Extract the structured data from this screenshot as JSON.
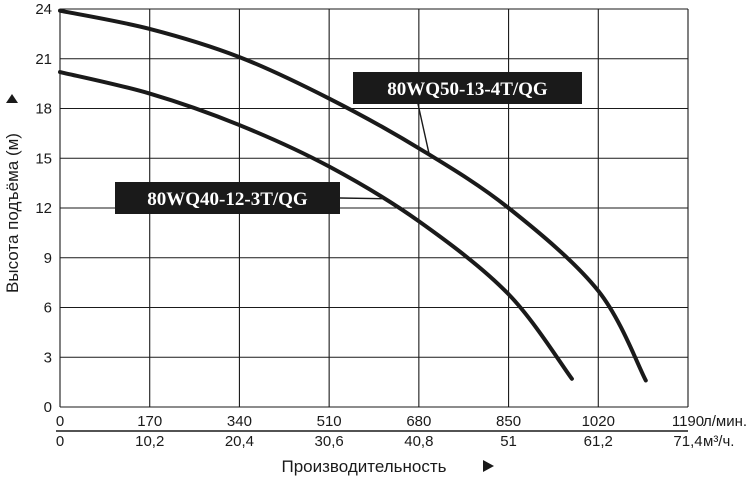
{
  "chart_data": {
    "type": "line",
    "ylabel": "Высота подъёма (м)",
    "xlabel": "Производительность",
    "y_ticks": [
      "0",
      "3",
      "6",
      "9",
      "12",
      "15",
      "18",
      "21",
      "24"
    ],
    "ylim": [
      0,
      24
    ],
    "x_ticks_lpm": [
      "0",
      "170",
      "340",
      "510",
      "680",
      "850",
      "1020",
      "1190"
    ],
    "x_unit_lpm": "л/мин.",
    "x_ticks_m3h": [
      "0",
      "10,2",
      "20,4",
      "30,6",
      "40,8",
      "51",
      "61,2",
      "71,4"
    ],
    "x_unit_m3h": "м³/ч.",
    "xlim_lpm": [
      0,
      1190
    ],
    "grid": true,
    "series": [
      {
        "name": "80WQ50-13-4T/QG",
        "x": [
          0,
          170,
          340,
          510,
          680,
          850,
          1020,
          1110
        ],
        "y": [
          23.9,
          22.8,
          21.1,
          18.6,
          15.6,
          12.0,
          7.0,
          1.6
        ]
      },
      {
        "name": "80WQ40-12-3T/QG",
        "x": [
          0,
          170,
          340,
          510,
          680,
          850,
          970
        ],
        "y": [
          20.2,
          18.9,
          17.0,
          14.5,
          11.2,
          6.8,
          1.7
        ]
      }
    ]
  },
  "colors": {
    "ink": "#1a1a1a",
    "label_bg": "#1a1a1a",
    "label_text": "#ffffff"
  }
}
